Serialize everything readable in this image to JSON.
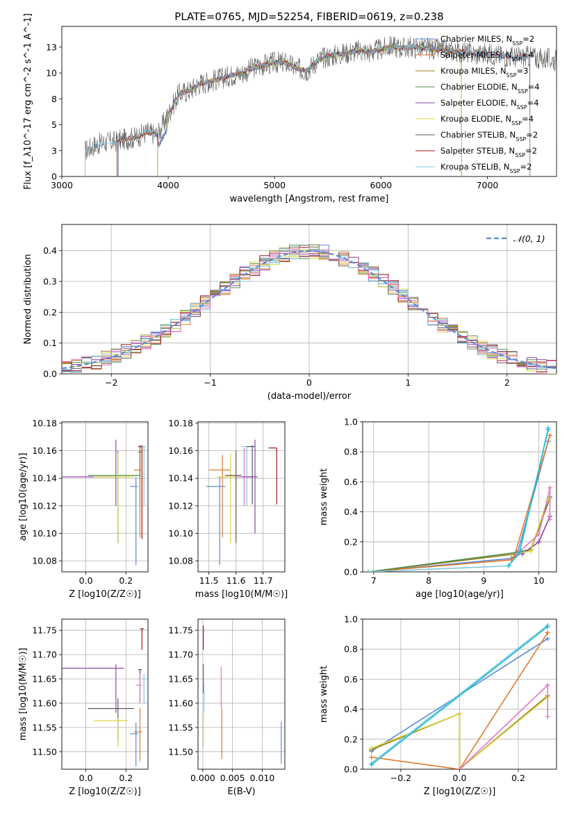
{
  "figure_title": "PLATE=0765, MJD=52254, FIBERID=0619, z=0.238",
  "colors": {
    "Chabrier MILES": "#5b8bd5",
    "Salpeter MILES": "#e07a2e",
    "Kroupa MILES": "#9a7d22",
    "Chabrier ELODIE": "#4f8f4a",
    "Salpeter ELODIE": "#8e44ad",
    "Kroupa ELODIE": "#d9d43a",
    "Chabrier STELIB": "#5a5a5a",
    "Salpeter STELIB": "#a31515",
    "Kroupa STELIB": "#7ec8e3",
    "pink": "#e377c2",
    "lime": "#bcd22b",
    "teal": "#17becf",
    "gauss": "#5b8bd5"
  },
  "chart_data": [
    {
      "id": "spectrum",
      "type": "line",
      "title": "PLATE=0765, MJD=52254, FIBERID=0619, z=0.238",
      "xlabel": "wavelength [Angstrom, rest frame]",
      "ylabel": "Flux [f_λ10^-17 erg cm^-2 s^-1 A^-1]",
      "xlim": [
        3000,
        7650
      ],
      "ylim": [
        0,
        14.5
      ],
      "xticks": [
        3000,
        4000,
        5000,
        6000,
        7000
      ],
      "yticks": [
        0.0,
        2.5,
        5.0,
        7.5,
        10.0,
        12.5
      ],
      "legend_position": "upper-right",
      "legend": [
        {
          "model": "Chabrier MILES",
          "nssp": "2"
        },
        {
          "model": "Salpeter MILES",
          "nssp": "4"
        },
        {
          "model": "Kroupa MILES",
          "nssp": "3"
        },
        {
          "model": "Chabrier ELODIE",
          "nssp": "4"
        },
        {
          "model": "Salpeter ELODIE",
          "nssp": "4"
        },
        {
          "model": "Kroupa ELODIE",
          "nssp": "4"
        },
        {
          "model": "Chabrier STELIB",
          "nssp": "2"
        },
        {
          "model": "Salpeter STELIB",
          "nssp": "2"
        },
        {
          "model": "Kroupa STELIB",
          "nssp": "2"
        }
      ],
      "data_envelope": {
        "x": [
          3220,
          3300,
          3400,
          3500,
          3600,
          3700,
          3800,
          3900,
          4000,
          4100,
          4200,
          4300,
          4400,
          4500,
          4600,
          4700,
          4800,
          4900,
          5000,
          5100,
          5200,
          5300,
          5400,
          5500,
          5600,
          5700,
          5800,
          5900,
          6000,
          6100,
          6200,
          6300,
          6400,
          6500,
          6600,
          6700,
          6800,
          6900,
          7000,
          7100,
          7200,
          7300,
          7400,
          7500,
          7600
        ],
        "y": [
          2.5,
          3.0,
          3.3,
          3.4,
          3.6,
          3.8,
          4.3,
          4.0,
          6.0,
          8.0,
          8.3,
          9.0,
          9.2,
          9.5,
          9.8,
          10.0,
          10.5,
          10.8,
          11.0,
          11.0,
          10.5,
          10.2,
          11.2,
          11.6,
          11.8,
          12.0,
          12.2,
          12.0,
          12.3,
          12.6,
          12.4,
          12.5,
          12.4,
          12.3,
          12.2,
          12.1,
          12.0,
          11.8,
          11.9,
          11.7,
          11.6,
          11.5,
          11.6,
          11.4,
          11.3
        ]
      }
    },
    {
      "id": "residuals",
      "type": "line",
      "xlabel": "(data-model)/error",
      "ylabel": "Normed distribution",
      "xlim": [
        -2.5,
        2.5
      ],
      "ylim": [
        0,
        0.485
      ],
      "xticks": [
        -2,
        -1,
        0,
        1,
        2
      ],
      "yticks": [
        0.0,
        0.1,
        0.2,
        0.3,
        0.4
      ],
      "legend": [
        "𝒩(0, 1)"
      ],
      "legend_position": "upper-right",
      "gaussian": {
        "mean": 0,
        "sigma": 1
      }
    },
    {
      "id": "age_vs_Z",
      "type": "scatter",
      "xlabel": "Z [log10(Z/Z☉)]",
      "ylabel": "age  [log10(age/yr)]",
      "xlim": [
        -0.12,
        0.31
      ],
      "ylim": [
        10.072,
        10.181
      ],
      "xticks": [
        0.0,
        0.2
      ],
      "yticks": [
        10.08,
        10.1,
        10.12,
        10.14,
        10.16,
        10.18
      ],
      "points": [
        {
          "color": "Salpeter ELODIE",
          "x": 0.15,
          "y": 10.141,
          "xlo": -0.12,
          "xhi": 0.15,
          "ylo": 10.12,
          "yhi": 10.168
        },
        {
          "color": "Chabrier ELODIE",
          "x": 0.16,
          "y": 10.142,
          "xlo": 0.01,
          "xhi": 0.27,
          "ylo": 10.093,
          "yhi": 10.16
        },
        {
          "color": "Kroupa ELODIE",
          "x": 0.16,
          "y": 10.141,
          "xlo": 0.04,
          "xhi": 0.24,
          "ylo": 10.093,
          "yhi": 10.158
        },
        {
          "color": "Chabrier STELIB",
          "x": 0.27,
          "y": 10.163,
          "xlo": 0.26,
          "xhi": 0.28,
          "ylo": 10.121,
          "yhi": 10.164
        },
        {
          "color": "Salpeter STELIB",
          "x": 0.28,
          "y": 10.163,
          "xlo": 0.27,
          "xhi": 0.29,
          "ylo": 10.096,
          "yhi": 10.164
        },
        {
          "color": "Salpeter MILES",
          "x": 0.27,
          "y": 10.146,
          "xlo": 0.24,
          "xhi": 0.28,
          "ylo": 10.097,
          "yhi": 10.162
        },
        {
          "color": "Chabrier MILES",
          "x": 0.25,
          "y": 10.134,
          "xlo": 0.22,
          "xhi": 0.26,
          "ylo": 10.077,
          "yhi": 10.141
        },
        {
          "color": "Kroupa STELIB",
          "x": 0.29,
          "y": 10.163,
          "xlo": 0.28,
          "xhi": 0.3,
          "ylo": 10.12,
          "yhi": 10.163
        },
        {
          "color": "Kroupa MILES",
          "x": 0.27,
          "y": 10.159,
          "xlo": 0.26,
          "xhi": 0.28,
          "ylo": 10.14,
          "yhi": 10.161
        }
      ]
    },
    {
      "id": "age_vs_mass",
      "type": "scatter",
      "xlabel": "mass [log10(M/M☉)]",
      "ylabel": "",
      "xlim": [
        11.46,
        11.78
      ],
      "ylim": [
        10.072,
        10.181
      ],
      "xticks": [
        11.5,
        11.6,
        11.7
      ],
      "yticks": [
        10.08,
        10.1,
        10.12,
        10.14,
        10.16,
        10.18
      ],
      "points": [
        {
          "color": "Chabrier MILES",
          "x": 11.54,
          "y": 10.134,
          "xlo": 11.49,
          "xhi": 11.56,
          "ylo": 10.077,
          "yhi": 10.141
        },
        {
          "color": "Salpeter MILES",
          "x": 11.55,
          "y": 10.146,
          "xlo": 11.5,
          "xhi": 11.58,
          "ylo": 10.097,
          "yhi": 10.157
        },
        {
          "color": "Kroupa ELODIE",
          "x": 11.58,
          "y": 10.141,
          "xlo": 11.53,
          "xhi": 11.61,
          "ylo": 10.093,
          "yhi": 10.158
        },
        {
          "color": "Chabrier STELIB",
          "x": 11.6,
          "y": 10.142,
          "xlo": 11.56,
          "xhi": 11.62,
          "ylo": 10.093,
          "yhi": 10.16
        },
        {
          "color": "Kroupa STELIB",
          "x": 11.64,
          "y": 10.163,
          "xlo": 11.62,
          "xhi": 11.66,
          "ylo": 10.12,
          "yhi": 10.163
        },
        {
          "color": "pink",
          "x": 11.63,
          "y": 10.141,
          "xlo": 11.6,
          "xhi": 11.66,
          "ylo": 10.12,
          "yhi": 10.162
        },
        {
          "color": "Chabrier STELIB",
          "x": 11.66,
          "y": 10.163,
          "xlo": 11.64,
          "xhi": 11.67,
          "ylo": 10.121,
          "yhi": 10.164
        },
        {
          "color": "Salpeter ELODIE",
          "x": 11.67,
          "y": 10.141,
          "xlo": 11.62,
          "xhi": 11.68,
          "ylo": 10.1,
          "yhi": 10.168
        },
        {
          "color": "Salpeter STELIB",
          "x": 11.75,
          "y": 10.162,
          "xlo": 11.72,
          "xhi": 11.75,
          "ylo": 10.121,
          "yhi": 10.162
        }
      ]
    },
    {
      "id": "mass_weight_vs_age",
      "type": "line",
      "xlabel": "age  [log10(age/yr)]",
      "ylabel": "mass weight",
      "xlim": [
        6.8,
        10.32
      ],
      "ylim": [
        0,
        1.0
      ],
      "xticks": [
        7,
        8,
        9,
        10
      ],
      "yticks": [
        0.0,
        0.2,
        0.4,
        0.6,
        0.8,
        1.0
      ],
      "series": [
        {
          "color": "Chabrier MILES",
          "x": [
            6.9,
            9.5,
            9.6,
            10.17
          ],
          "y": [
            0.0,
            0.09,
            0.11,
            0.87
          ]
        },
        {
          "color": "Salpeter MILES",
          "x": [
            6.9,
            9.5,
            9.55,
            10.2
          ],
          "y": [
            0.0,
            0.08,
            0.1,
            0.91
          ]
        },
        {
          "color": "Kroupa MILES",
          "x": [
            6.9,
            9.6,
            9.85,
            10.2
          ],
          "y": [
            0.0,
            0.12,
            0.14,
            0.49
          ]
        },
        {
          "color": "Chabrier ELODIE",
          "x": [
            6.9,
            9.6,
            9.85,
            10.2
          ],
          "y": [
            0.0,
            0.13,
            0.15,
            0.5
          ]
        },
        {
          "color": "Salpeter ELODIE",
          "x": [
            9.7,
            10.0,
            10.2
          ],
          "y": [
            0.12,
            0.2,
            0.37
          ]
        },
        {
          "color": "Kroupa ELODIE",
          "x": [
            9.6,
            9.85,
            10.15,
            10.2
          ],
          "y": [
            0.12,
            0.14,
            0.47,
            0.49
          ]
        },
        {
          "color": "pink",
          "x": [
            9.6,
            10.0,
            10.2,
            10.2
          ],
          "y": [
            0.12,
            0.25,
            0.56,
            0.35
          ]
        },
        {
          "color": "Kroupa STELIB",
          "x": [
            6.9,
            9.45,
            9.65,
            10.17
          ],
          "y": [
            0.0,
            0.04,
            0.13,
            0.96
          ]
        },
        {
          "color": "teal",
          "x": [
            9.45,
            9.65,
            10.17
          ],
          "y": [
            0.04,
            0.13,
            0.95
          ]
        }
      ]
    },
    {
      "id": "mass_vs_Z",
      "type": "scatter",
      "xlabel": "Z [log10(Z/Z☉)]",
      "ylabel": "mass [log10(M/M☉)]",
      "xlim": [
        -0.12,
        0.31
      ],
      "ylim": [
        11.464,
        11.773
      ],
      "xticks": [
        0.0,
        0.2
      ],
      "yticks": [
        11.5,
        11.55,
        11.6,
        11.65,
        11.7,
        11.75
      ],
      "points": [
        {
          "color": "Salpeter ELODIE",
          "x": 0.15,
          "y": 11.672,
          "xlo": -0.12,
          "xhi": 0.19,
          "ylo": 11.58,
          "yhi": 11.68
        },
        {
          "color": "Chabrier STELIB",
          "x": 0.16,
          "y": 11.589,
          "xlo": 0.01,
          "xhi": 0.24,
          "ylo": 11.52,
          "yhi": 11.61
        },
        {
          "color": "Kroupa ELODIE",
          "x": 0.16,
          "y": 11.564,
          "xlo": 0.04,
          "xhi": 0.21,
          "ylo": 11.51,
          "yhi": 11.57
        },
        {
          "color": "Salpeter STELIB",
          "x": 0.28,
          "y": 11.753,
          "xlo": 0.27,
          "xhi": 0.29,
          "ylo": 11.71,
          "yhi": 11.753
        },
        {
          "color": "Chabrier STELIB",
          "x": 0.27,
          "y": 11.669,
          "xlo": 0.26,
          "xhi": 0.28,
          "ylo": 11.6,
          "yhi": 11.67
        },
        {
          "color": "pink",
          "x": 0.27,
          "y": 11.637,
          "xlo": 0.25,
          "xhi": 0.28,
          "ylo": 11.6,
          "yhi": 11.66
        },
        {
          "color": "Salpeter MILES",
          "x": 0.27,
          "y": 11.541,
          "xlo": 0.24,
          "xhi": 0.28,
          "ylo": 11.48,
          "yhi": 11.59
        },
        {
          "color": "Chabrier MILES",
          "x": 0.25,
          "y": 11.537,
          "xlo": 0.22,
          "xhi": 0.26,
          "ylo": 11.47,
          "yhi": 11.56
        },
        {
          "color": "Kroupa STELIB",
          "x": 0.29,
          "y": 11.65,
          "xlo": 0.28,
          "xhi": 0.3,
          "ylo": 11.6,
          "yhi": 11.66
        }
      ]
    },
    {
      "id": "mass_vs_ebv",
      "type": "scatter",
      "xlabel": "E(B-V)",
      "ylabel": "",
      "xlim": [
        -0.0008,
        0.0138
      ],
      "ylim": [
        11.464,
        11.773
      ],
      "xticks": [
        0.0,
        0.005,
        0.01
      ],
      "yticks": [
        11.5,
        11.55,
        11.6,
        11.65,
        11.7,
        11.75
      ],
      "points": [
        {
          "color": "Salpeter STELIB",
          "x": 0.0001,
          "y": 11.74,
          "xlo": 0.0001,
          "xhi": 0.0001,
          "ylo": 11.71,
          "yhi": 11.76
        },
        {
          "color": "Salpeter ELODIE",
          "x": 0.0001,
          "y": 11.66,
          "xlo": 0.0001,
          "xhi": 0.0001,
          "ylo": 11.62,
          "yhi": 11.68
        },
        {
          "color": "Kroupa STELIB",
          "x": 0.0002,
          "y": 11.61,
          "xlo": 0.0002,
          "xhi": 0.0002,
          "ylo": 11.58,
          "yhi": 11.64
        },
        {
          "color": "Kroupa ELODIE",
          "x": 0.0001,
          "y": 11.55,
          "xlo": 0.0001,
          "xhi": 0.0001,
          "ylo": 11.51,
          "yhi": 11.58
        },
        {
          "color": "pink",
          "x": 0.0031,
          "y": 11.64,
          "xlo": 0.0031,
          "xhi": 0.0031,
          "ylo": 11.59,
          "yhi": 11.675
        },
        {
          "color": "Salpeter MILES",
          "x": 0.0032,
          "y": 11.55,
          "xlo": 0.0032,
          "xhi": 0.0032,
          "ylo": 11.485,
          "yhi": 11.59
        },
        {
          "color": "Chabrier MILES",
          "x": 0.0132,
          "y": 11.52,
          "xlo": 0.0132,
          "xhi": 0.0132,
          "ylo": 11.475,
          "yhi": 11.562
        }
      ]
    },
    {
      "id": "mass_weight_vs_Z",
      "type": "line",
      "xlabel": "Z [log10(Z/Z☉)]",
      "ylabel": "mass weight",
      "xlim": [
        -0.33,
        0.33
      ],
      "ylim": [
        0,
        1.0
      ],
      "xticks": [
        -0.2,
        0.0,
        0.2
      ],
      "yticks": [
        0.0,
        0.2,
        0.4,
        0.6,
        0.8,
        1.0
      ],
      "series": [
        {
          "color": "Chabrier MILES",
          "x": [
            -0.3,
            0.3
          ],
          "y": [
            0.12,
            0.87
          ]
        },
        {
          "color": "Salpeter MILES",
          "x": [
            -0.3,
            0.0,
            0.3
          ],
          "y": [
            0.08,
            0.0,
            0.91
          ]
        },
        {
          "color": "Kroupa MILES",
          "x": [
            -0.3,
            0.0,
            0.0,
            0.3
          ],
          "y": [
            0.13,
            0.37,
            0.0,
            0.49
          ]
        },
        {
          "color": "Kroupa ELODIE",
          "x": [
            -0.3,
            0.0,
            0.0,
            0.3
          ],
          "y": [
            0.14,
            0.37,
            0.0,
            0.48
          ]
        },
        {
          "color": "pink",
          "x": [
            0.0,
            0.3,
            0.3
          ],
          "y": [
            0.0,
            0.56,
            0.35
          ]
        },
        {
          "color": "Kroupa STELIB",
          "x": [
            -0.3,
            0.3
          ],
          "y": [
            0.04,
            0.96
          ]
        },
        {
          "color": "teal",
          "x": [
            -0.3,
            0.3
          ],
          "y": [
            0.03,
            0.95
          ]
        }
      ]
    }
  ]
}
